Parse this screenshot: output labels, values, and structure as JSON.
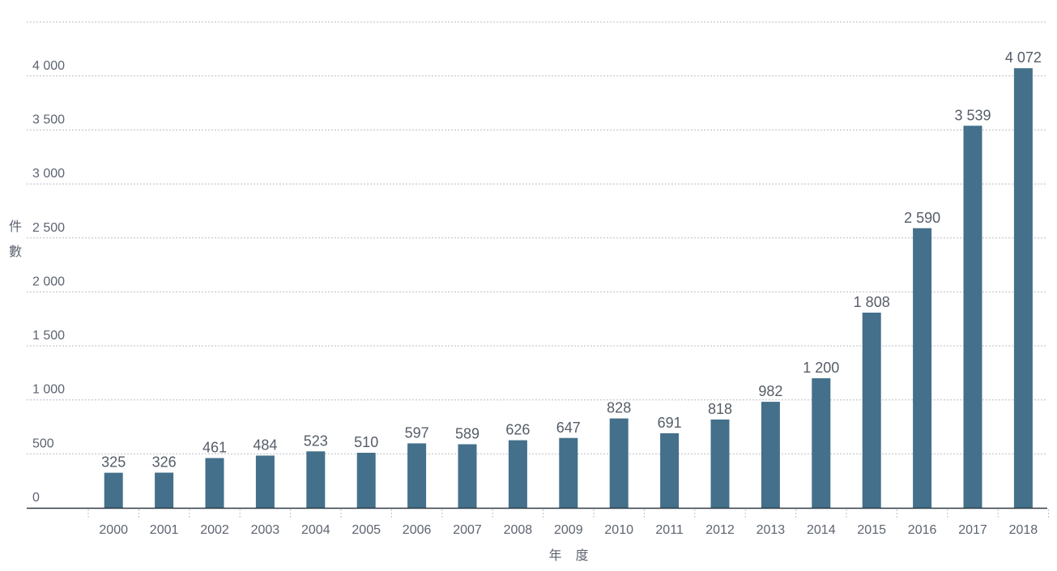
{
  "chart_data": {
    "type": "bar",
    "categories": [
      "2000",
      "2001",
      "2002",
      "2003",
      "2004",
      "2005",
      "2006",
      "2007",
      "2008",
      "2009",
      "2010",
      "2011",
      "2012",
      "2013",
      "2014",
      "2015",
      "2016",
      "2017",
      "2018"
    ],
    "values": [
      325,
      326,
      461,
      484,
      523,
      510,
      597,
      589,
      626,
      647,
      828,
      691,
      818,
      982,
      1200,
      1808,
      2590,
      3539,
      4072
    ],
    "value_labels": [
      "325",
      "326",
      "461",
      "484",
      "523",
      "510",
      "597",
      "589",
      "626",
      "647",
      "828",
      "691",
      "818",
      "982",
      "1 200",
      "1 808",
      "2 590",
      "3 539",
      "4 072"
    ],
    "yticks": [
      0,
      500,
      1000,
      1500,
      2000,
      2500,
      3000,
      3500,
      4000
    ],
    "ytick_labels": [
      "0",
      "500",
      "1 000",
      "1 500",
      "2 000",
      "2 500",
      "3 000",
      "3 500",
      "4 000"
    ],
    "ylim": [
      0,
      4500
    ],
    "xlabel": "年 度",
    "ylabel": "件數",
    "grid": true,
    "bar_color": "#44708b",
    "grid_color": "#b9bec5",
    "axis_color": "#2f3a45"
  }
}
